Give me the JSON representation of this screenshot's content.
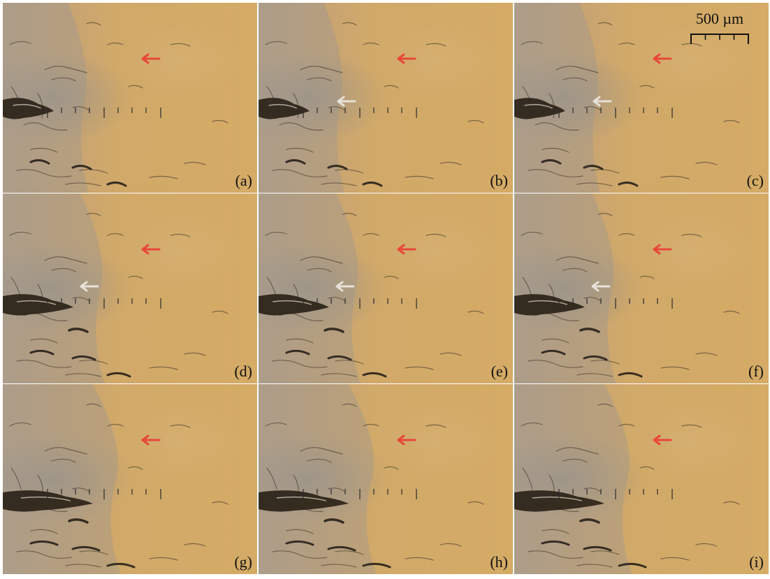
{
  "figure": {
    "panels": [
      {
        "label": "(a)",
        "crack_stage": 1,
        "show_white_arrow": false
      },
      {
        "label": "(b)",
        "crack_stage": 1,
        "show_white_arrow": true
      },
      {
        "label": "(c)",
        "crack_stage": 1,
        "show_white_arrow": true
      },
      {
        "label": "(d)",
        "crack_stage": 2,
        "show_white_arrow": true
      },
      {
        "label": "(e)",
        "crack_stage": 2,
        "show_white_arrow": true
      },
      {
        "label": "(f)",
        "crack_stage": 2,
        "show_white_arrow": true
      },
      {
        "label": "(g)",
        "crack_stage": 3,
        "show_white_arrow": false
      },
      {
        "label": "(h)",
        "crack_stage": 3,
        "show_white_arrow": false
      },
      {
        "label": "(i)",
        "crack_stage": 3,
        "show_white_arrow": false
      }
    ],
    "scale_bar": {
      "label": "500 µm"
    },
    "colors": {
      "background": "#d3a967",
      "red_arrow": "#e8473a",
      "white_arrow": "#e6e1d8",
      "tick_marks": "#2a2a2a",
      "crack": "#2b2318"
    },
    "icons": {
      "red_arrow": "arrow-left-icon",
      "white_arrow": "arrow-left-icon"
    }
  }
}
